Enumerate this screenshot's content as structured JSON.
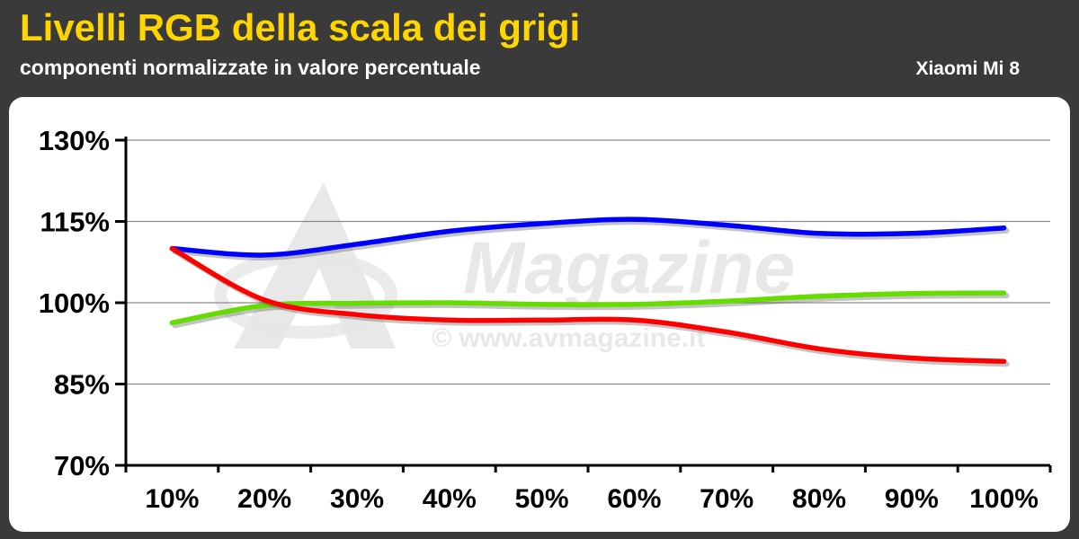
{
  "header": {
    "title": "Livelli RGB della scala dei grigi",
    "subtitle": "componenti normalizzate in valore percentuale",
    "device": "Xiaomi Mi 8"
  },
  "watermark": {
    "brand": "Magazine",
    "url": "© www.avmagazine.it"
  },
  "chart_data": {
    "type": "line",
    "title": "Livelli RGB della scala dei grigi",
    "subtitle": "componenti normalizzate in valore percentuale",
    "categories": [
      "10%",
      "20%",
      "30%",
      "40%",
      "50%",
      "60%",
      "70%",
      "80%",
      "90%",
      "100%"
    ],
    "ylim": [
      70,
      130
    ],
    "yticks": [
      70,
      85,
      100,
      115,
      130
    ],
    "ytick_labels": [
      "70%",
      "85%",
      "100%",
      "115%",
      "130%"
    ],
    "grid": true,
    "legend": "none",
    "series": [
      {
        "color": "#0000ff",
        "values": [
          110.0,
          108.8,
          110.8,
          113.2,
          114.6,
          115.4,
          114.3,
          112.8,
          112.8,
          113.8
        ]
      },
      {
        "color": "#66dd00",
        "values": [
          96.3,
          99.5,
          99.9,
          100.0,
          99.7,
          99.7,
          100.3,
          101.2,
          101.7,
          101.8
        ]
      },
      {
        "color": "#ff0000",
        "values": [
          110.0,
          100.5,
          97.8,
          96.8,
          96.8,
          96.8,
          94.6,
          91.5,
          89.8,
          89.2
        ]
      }
    ]
  }
}
